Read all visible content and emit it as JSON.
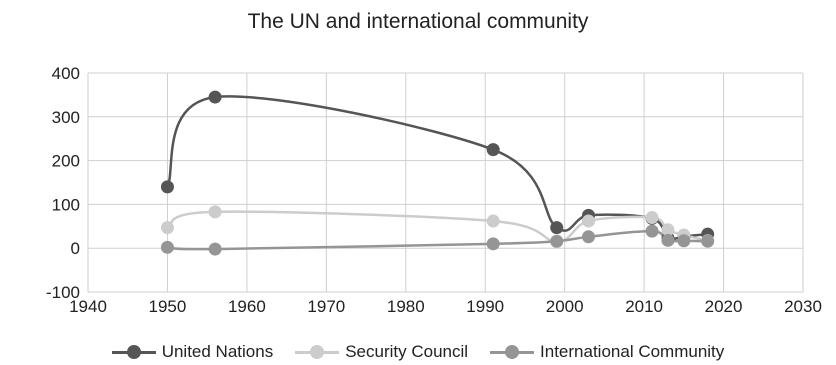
{
  "chart_data": {
    "type": "line",
    "title": "The UN and international community",
    "xlabel": "",
    "ylabel": "",
    "xlim": [
      1940,
      2030
    ],
    "ylim": [
      -100,
      400
    ],
    "x_ticks": [
      1940,
      1950,
      1960,
      1970,
      1980,
      1990,
      2000,
      2010,
      2020,
      2030
    ],
    "y_ticks": [
      -100,
      0,
      100,
      200,
      300,
      400
    ],
    "grid": true,
    "smooth": true,
    "legend_position": "bottom",
    "series": [
      {
        "name": "United Nations",
        "color": "#555555",
        "x": [
          1950,
          1956,
          1991,
          1999,
          2003,
          2011,
          2013,
          2015,
          2018
        ],
        "y": [
          140,
          345,
          225,
          47,
          75,
          68,
          23,
          27,
          32
        ]
      },
      {
        "name": "Security Council",
        "color": "#cccccc",
        "x": [
          1950,
          1956,
          1991,
          1999,
          2003,
          2011,
          2013,
          2015,
          2018
        ],
        "y": [
          47,
          83,
          62,
          15,
          62,
          70,
          42,
          30,
          17
        ]
      },
      {
        "name": "International Community",
        "color": "#959595",
        "x": [
          1950,
          1956,
          1991,
          1999,
          2003,
          2011,
          2013,
          2015,
          2018
        ],
        "y": [
          2,
          -2,
          10,
          16,
          26,
          39,
          18,
          17,
          16
        ]
      }
    ]
  }
}
